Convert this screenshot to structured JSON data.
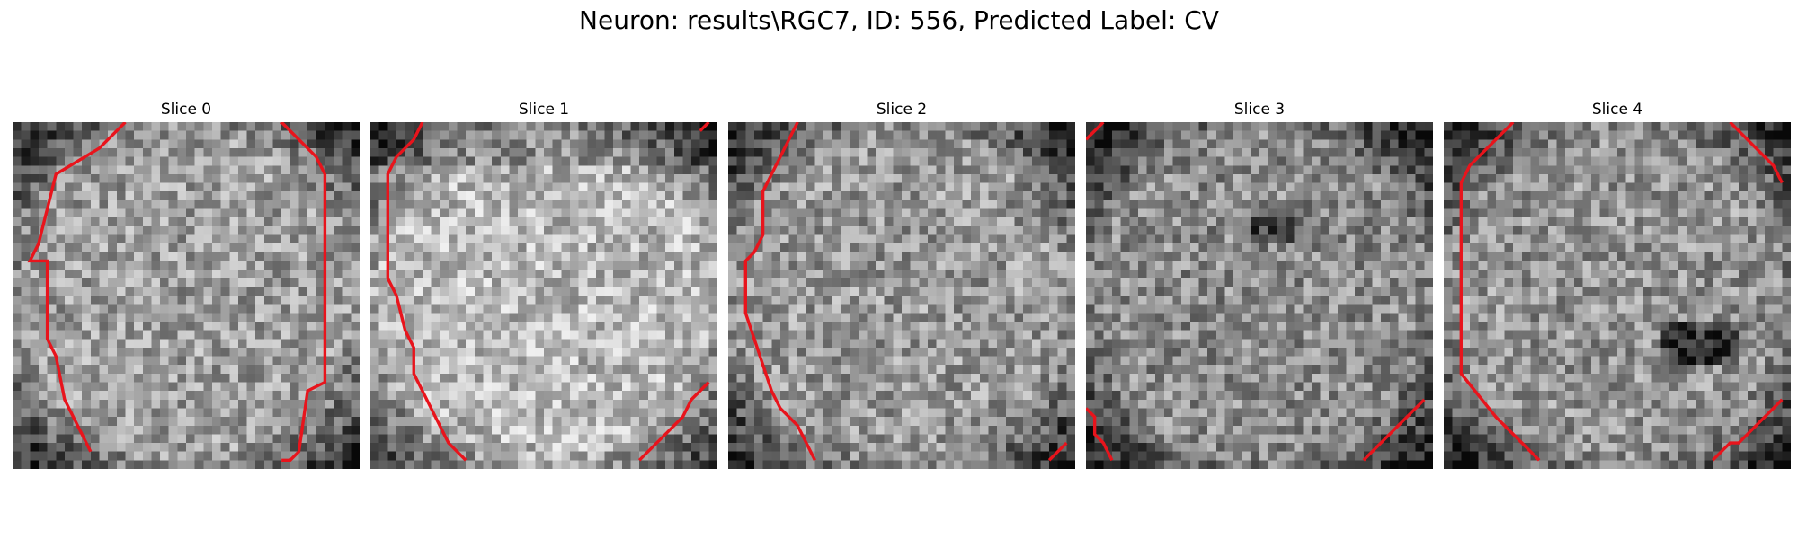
{
  "suptitle": "Neuron: results\\RGC7, ID: 556, Predicted Label: CV",
  "colors": {
    "contour": "#e8141c",
    "background": "#ffffff"
  },
  "slices": [
    {
      "title": "Slice 0",
      "bright": 0.62,
      "contour_left": [
        [
          13,
          0
        ],
        [
          11,
          2
        ],
        [
          10,
          3
        ],
        [
          5,
          6
        ],
        [
          4,
          10
        ],
        [
          3,
          14
        ],
        [
          2,
          16
        ],
        [
          4,
          16
        ],
        [
          4,
          25
        ],
        [
          5,
          27
        ],
        [
          6,
          32
        ],
        [
          8,
          36
        ],
        [
          9,
          38
        ]
      ],
      "contour_right": [
        [
          31,
          0
        ],
        [
          35,
          4
        ],
        [
          36,
          6
        ],
        [
          36,
          30
        ],
        [
          34,
          31
        ],
        [
          33,
          38
        ],
        [
          32,
          39
        ],
        [
          31,
          39
        ]
      ]
    },
    {
      "title": "Slice 1",
      "bright": 0.72,
      "contour_left": [
        [
          6,
          0
        ],
        [
          5,
          2
        ],
        [
          3,
          4
        ],
        [
          2,
          6
        ],
        [
          2,
          18
        ],
        [
          3,
          20
        ],
        [
          4,
          24
        ],
        [
          5,
          26
        ],
        [
          5,
          29
        ],
        [
          6,
          31
        ],
        [
          7,
          33
        ],
        [
          8,
          35
        ],
        [
          9,
          37
        ],
        [
          10,
          38
        ],
        [
          11,
          39
        ]
      ],
      "contour_right": [
        [
          39,
          0
        ],
        [
          38,
          1
        ]
      ],
      "contour_br": [
        [
          31,
          39
        ],
        [
          33,
          37
        ],
        [
          34,
          36
        ],
        [
          36,
          34
        ],
        [
          37,
          32
        ],
        [
          39,
          30
        ]
      ]
    },
    {
      "title": "Slice 2",
      "bright": 0.6,
      "contour_left": [
        [
          8,
          0
        ],
        [
          7,
          2
        ],
        [
          6,
          4
        ],
        [
          5,
          6
        ],
        [
          4,
          8
        ],
        [
          4,
          13
        ],
        [
          3,
          15
        ],
        [
          2,
          16
        ],
        [
          2,
          22
        ],
        [
          3,
          25
        ],
        [
          4,
          28
        ],
        [
          5,
          31
        ],
        [
          6,
          33
        ],
        [
          7,
          34
        ],
        [
          8,
          35
        ],
        [
          9,
          37
        ],
        [
          10,
          39
        ]
      ],
      "contour_br": [
        [
          37,
          39
        ],
        [
          39,
          37
        ]
      ]
    },
    {
      "title": "Slice 3",
      "bright": 0.55,
      "contour_tl": [
        [
          0,
          2
        ],
        [
          2,
          0
        ]
      ],
      "contour_bl": [
        [
          0,
          33
        ],
        [
          1,
          34
        ],
        [
          1,
          36
        ],
        [
          2,
          37
        ],
        [
          3,
          39
        ]
      ],
      "contour_br": [
        [
          32,
          39
        ],
        [
          39,
          32
        ]
      ]
    },
    {
      "title": "Slice 4",
      "bright": 0.58,
      "contour_left": [
        [
          8,
          0
        ],
        [
          3,
          5
        ],
        [
          2,
          7
        ],
        [
          2,
          29
        ],
        [
          6,
          34
        ],
        [
          7,
          35
        ],
        [
          10,
          38
        ],
        [
          11,
          39
        ]
      ],
      "contour_tr": [
        [
          33,
          0
        ],
        [
          38,
          5
        ],
        [
          39,
          7
        ]
      ],
      "contour_br": [
        [
          31,
          39
        ],
        [
          33,
          37
        ],
        [
          34,
          37
        ],
        [
          39,
          32
        ]
      ]
    }
  ]
}
